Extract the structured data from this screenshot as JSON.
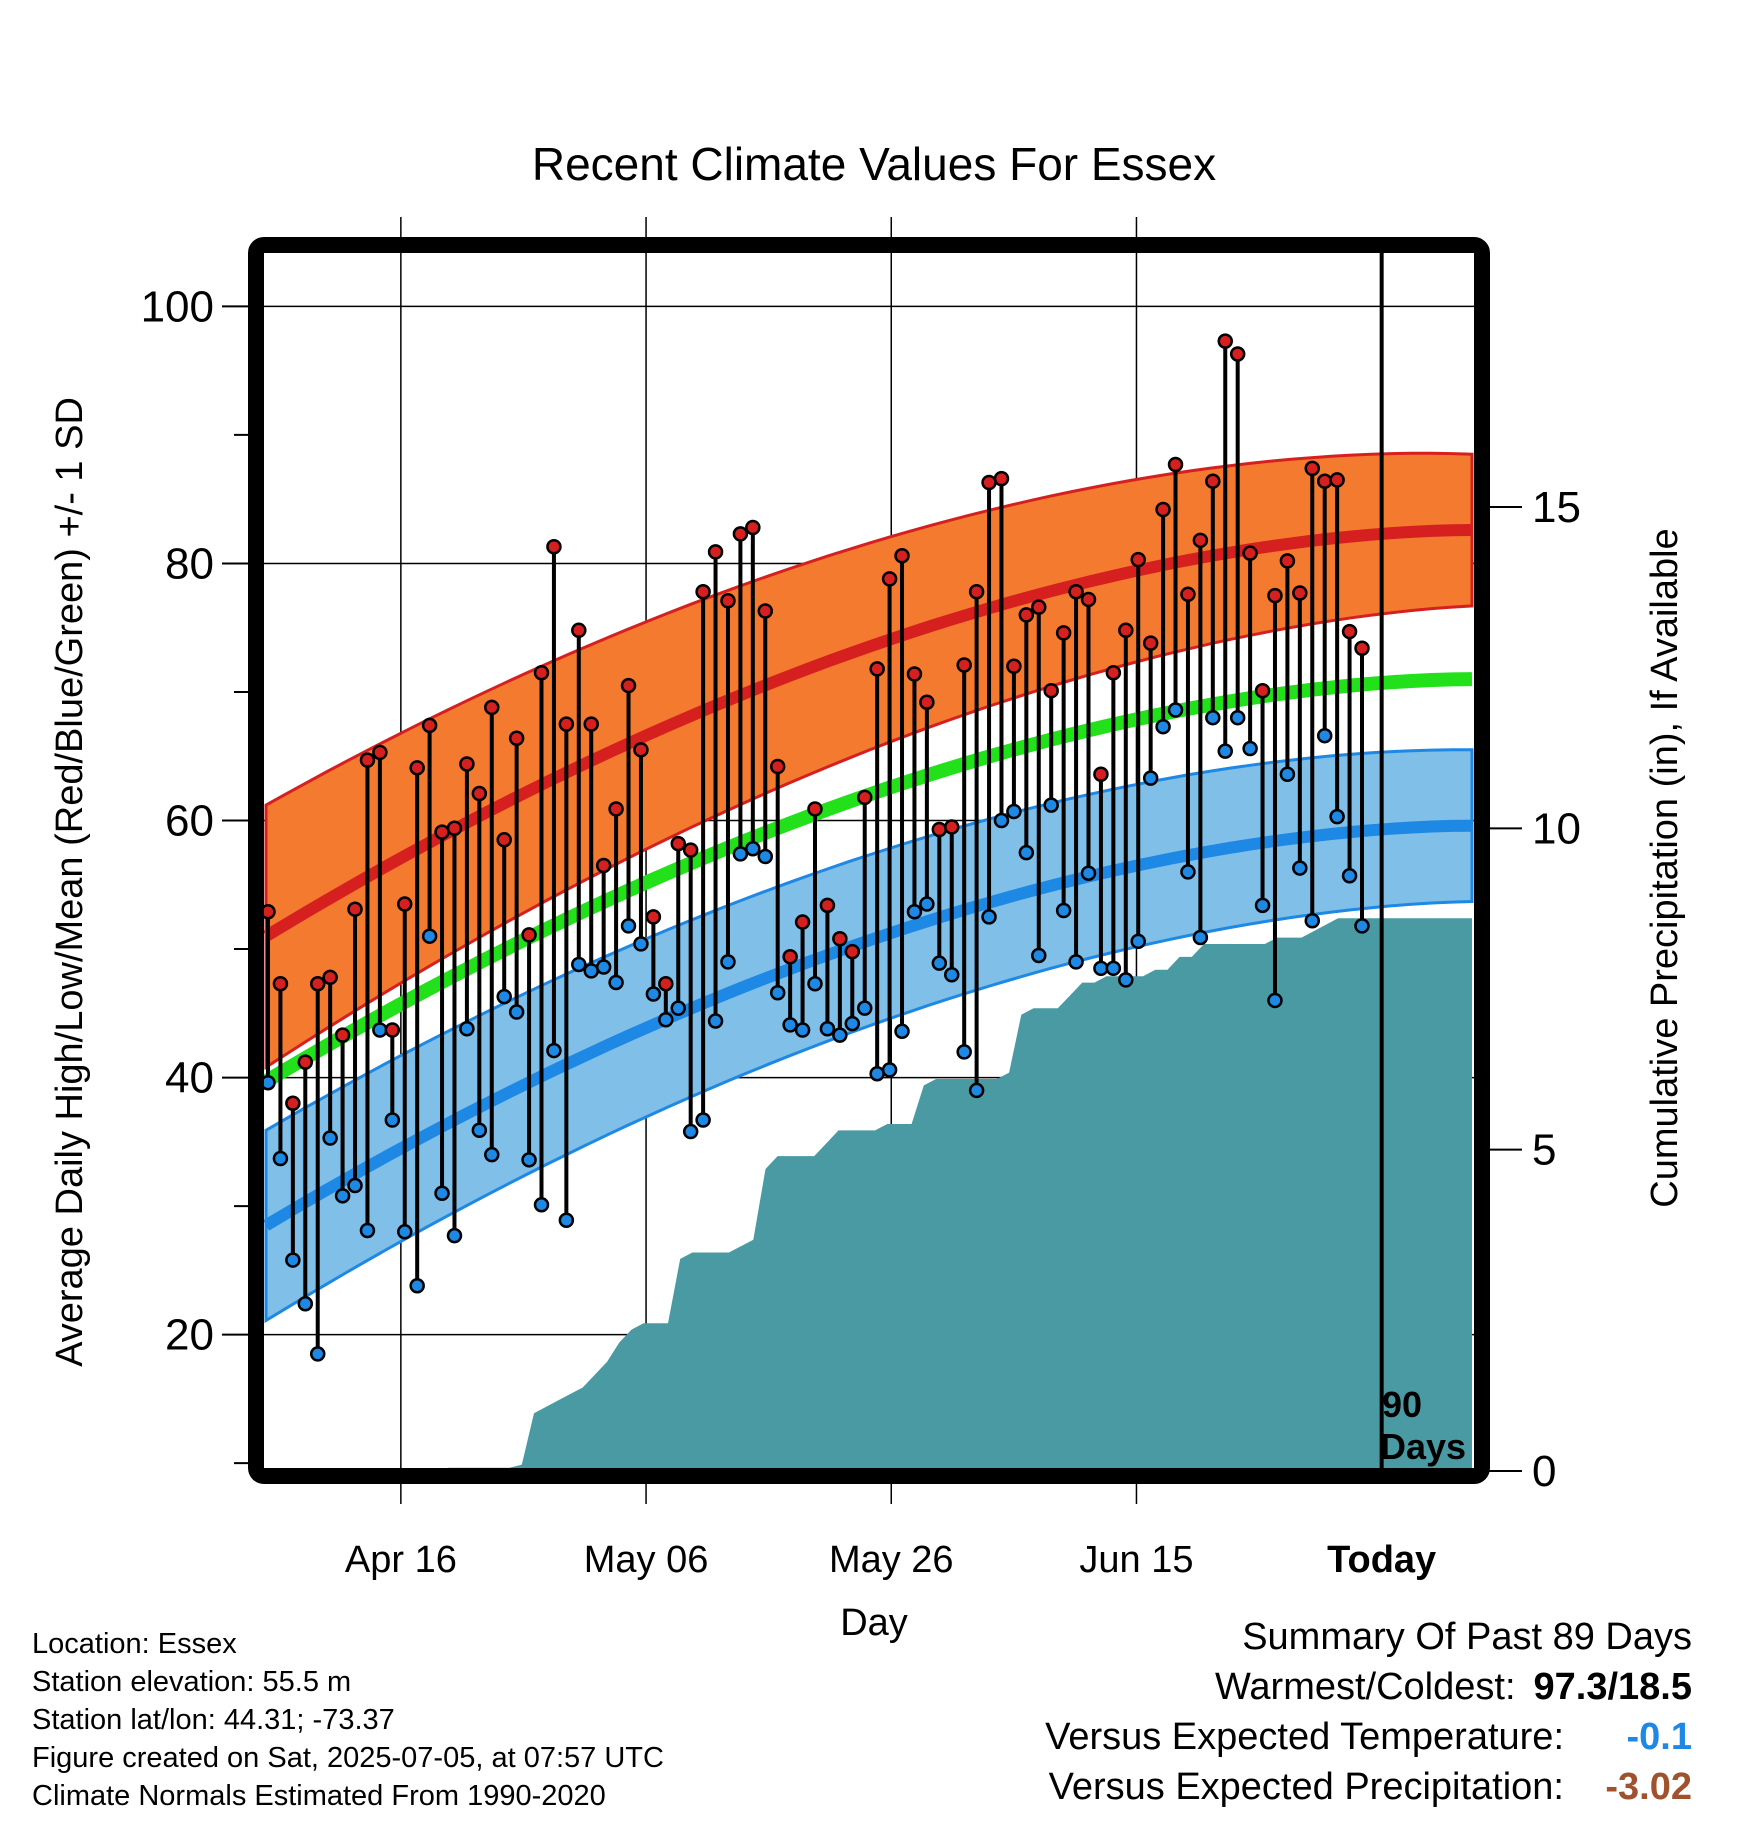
{
  "chart_data": {
    "type": "line",
    "title": "Recent Climate Values For Essex",
    "xlabel": "Day",
    "ylabel": "Average Daily High/Low/Mean (Red/Blue/Green) +/- 1 SD",
    "y2label": "Cumulative Precipitation (in), If Available",
    "x_tick_labels": [
      "Apr 16",
      "May 06",
      "May 26",
      "Jun 15",
      "Today"
    ],
    "x_tick_days": [
      11,
      31,
      51,
      71,
      91
    ],
    "xlim": [
      0,
      100
    ],
    "ylim": [
      9,
      104
    ],
    "y_ticks": [
      20,
      40,
      60,
      80,
      100
    ],
    "y2lim": [
      0,
      19
    ],
    "y2_ticks": [
      0,
      5,
      10,
      15
    ],
    "grid": true,
    "today_marker": {
      "label_line1": "90",
      "label_line2": "Days"
    },
    "normals": {
      "high_mean_start": 51,
      "high_mean_end": 82.6,
      "high_sd_start": 10.2,
      "high_sd_end": 5.9,
      "low_mean_start": 28.5,
      "low_mean_end": 59.6,
      "low_sd_start": 7.4,
      "low_sd_end": 5.9,
      "mean_start": 39.7,
      "mean_end": 71
    },
    "series": [
      {
        "name": "High",
        "color": "#d62020",
        "values": [
          52.9,
          47.3,
          38.0,
          41.2,
          47.3,
          47.8,
          43.3,
          53.1,
          64.7,
          65.3,
          43.7,
          53.5,
          64.1,
          67.4,
          59.1,
          59.4,
          64.4,
          62.1,
          68.8,
          58.5,
          66.4,
          51.1,
          71.5,
          81.3,
          67.5,
          74.8,
          67.5,
          56.5,
          60.9,
          70.5,
          65.5,
          52.5,
          47.3,
          58.2,
          57.7,
          77.8,
          80.9,
          77.1,
          82.3,
          82.8,
          76.3,
          64.2,
          49.4,
          52.1,
          60.9,
          53.4,
          50.8,
          49.8,
          61.8,
          71.8,
          78.8,
          80.6,
          71.4,
          69.2,
          59.3,
          59.5,
          72.1,
          77.8,
          86.3,
          86.6,
          72.0,
          76.0,
          76.6,
          70.1,
          74.6,
          77.8,
          77.2,
          63.6,
          71.5,
          74.8,
          80.3,
          73.8,
          84.2,
          87.7,
          77.6,
          81.8,
          86.4,
          97.3,
          96.3,
          80.8,
          70.1,
          77.5,
          80.2,
          77.7,
          87.4,
          86.4,
          86.5,
          74.7,
          73.4
        ]
      },
      {
        "name": "Low",
        "color": "#1e88e5",
        "values": [
          39.6,
          33.7,
          25.8,
          22.4,
          18.5,
          35.3,
          30.8,
          31.6,
          28.1,
          43.7,
          36.7,
          28.0,
          23.8,
          51.0,
          31.0,
          27.7,
          43.8,
          35.9,
          34.0,
          46.3,
          45.1,
          33.6,
          30.1,
          42.1,
          28.9,
          48.8,
          48.3,
          48.6,
          47.4,
          51.8,
          50.4,
          46.5,
          44.5,
          45.4,
          35.8,
          36.7,
          44.4,
          49.0,
          57.4,
          57.8,
          57.2,
          46.6,
          44.1,
          43.7,
          47.3,
          43.8,
          43.3,
          44.2,
          45.4,
          40.3,
          40.6,
          43.6,
          52.9,
          53.5,
          48.9,
          48.0,
          42.0,
          39.0,
          52.5,
          60.0,
          60.7,
          57.5,
          49.5,
          61.2,
          53.0,
          49.0,
          55.9,
          48.5,
          48.5,
          47.6,
          50.6,
          63.3,
          67.3,
          68.6,
          56.0,
          50.9,
          68.0,
          65.4,
          68.0,
          65.6,
          53.4,
          46.0,
          63.6,
          56.3,
          52.2,
          66.6,
          60.3,
          55.7,
          51.8
        ]
      },
      {
        "name": "Precipitation",
        "color": "#4a9aa3",
        "values": [
          0,
          0,
          0,
          0,
          0,
          0,
          0,
          0,
          0,
          0,
          0,
          0,
          0,
          0,
          0,
          0.05,
          0.05,
          0.05,
          0.05,
          0.05,
          0.05,
          0.1,
          0.9,
          1.0,
          1.1,
          1.2,
          1.3,
          1.5,
          1.7,
          2.0,
          2.2,
          2.3,
          2.3,
          2.3,
          3.3,
          3.4,
          3.4,
          3.4,
          3.4,
          3.5,
          3.6,
          4.7,
          4.9,
          4.9,
          4.9,
          4.9,
          5.1,
          5.3,
          5.3,
          5.3,
          5.3,
          5.4,
          5.4,
          5.4,
          6.0,
          6.1,
          6.1,
          6.1,
          6.1,
          6.1,
          6.1,
          6.2,
          7.1,
          7.2,
          7.2,
          7.2,
          7.4,
          7.6,
          7.6,
          7.7,
          7.7,
          7.7,
          7.7,
          7.8,
          7.8,
          8.0,
          8.0,
          8.2,
          8.2,
          8.2,
          8.2,
          8.2,
          8.2,
          8.3,
          8.3,
          8.3,
          8.4,
          8.5,
          8.6,
          8.6,
          8.6,
          8.6,
          8.6,
          8.6,
          8.6,
          8.6,
          8.6,
          8.6,
          8.6,
          8.6
        ]
      }
    ]
  },
  "info": {
    "location": "Location: Essex",
    "elevation": "Station elevation: 55.5 m",
    "latlon": "Station lat/lon: 44.31; -73.37",
    "created": "Figure created on Sat, 2025-07-05, at 07:57 UTC",
    "normals": "Climate Normals Estimated From 1990-2020"
  },
  "summary": {
    "title": "Summary Of Past 89 Days",
    "warmest_label": "Warmest/Coldest:",
    "warmest_value": "97.3/18.5",
    "temp_label": "Versus Expected Temperature:",
    "temp_value": "-0.1",
    "temp_color": "#1e88e5",
    "precip_label": "Versus Expected Precipitation:",
    "precip_value": "-3.02",
    "precip_color": "#a0522d"
  }
}
